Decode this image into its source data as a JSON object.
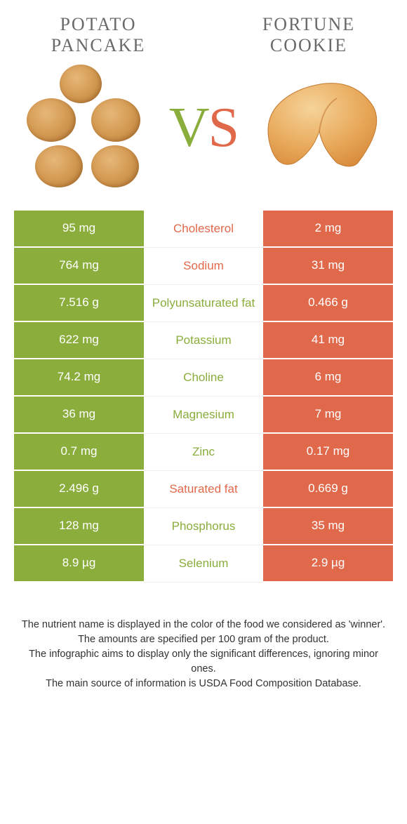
{
  "colors": {
    "green": "#8aad3c",
    "orange": "#e1694b",
    "title": "#6a6a6a"
  },
  "left": {
    "title": "POTATO\nPANCAKE"
  },
  "right": {
    "title": "FORTUNE\nCOOKIE"
  },
  "vs": {
    "v": "V",
    "s": "S"
  },
  "rows": [
    {
      "left": "95 mg",
      "label": "Cholesterol",
      "right": "2 mg",
      "label_color": "orange"
    },
    {
      "left": "764 mg",
      "label": "Sodium",
      "right": "31 mg",
      "label_color": "orange"
    },
    {
      "left": "7.516 g",
      "label": "Polyunsaturated fat",
      "right": "0.466 g",
      "label_color": "green"
    },
    {
      "left": "622 mg",
      "label": "Potassium",
      "right": "41 mg",
      "label_color": "green"
    },
    {
      "left": "74.2 mg",
      "label": "Choline",
      "right": "6 mg",
      "label_color": "green"
    },
    {
      "left": "36 mg",
      "label": "Magnesium",
      "right": "7 mg",
      "label_color": "green"
    },
    {
      "left": "0.7 mg",
      "label": "Zinc",
      "right": "0.17 mg",
      "label_color": "green"
    },
    {
      "left": "2.496 g",
      "label": "Saturated fat",
      "right": "0.669 g",
      "label_color": "orange"
    },
    {
      "left": "128 mg",
      "label": "Phosphorus",
      "right": "35 mg",
      "label_color": "green"
    },
    {
      "left": "8.9 µg",
      "label": "Selenium",
      "right": "2.9 µg",
      "label_color": "green"
    }
  ],
  "footer": [
    "The nutrient name is displayed in the color of the food we considered as 'winner'.",
    "The amounts are specified per 100 gram of the product.",
    "The infographic aims to display only the significant differences, ignoring minor ones.",
    "The main source of information is USDA Food Composition Database."
  ]
}
